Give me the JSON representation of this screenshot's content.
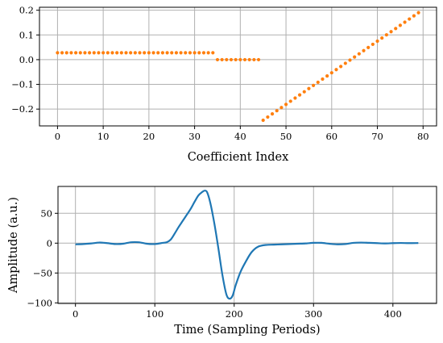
{
  "chart_data": [
    {
      "type": "scatter",
      "xlabel": "Coefficient Index",
      "ylabel": "",
      "xlim": [
        -3.95,
        82.95
      ],
      "ylim": [
        -0.268,
        0.212
      ],
      "xticks": [
        0,
        10,
        20,
        30,
        40,
        50,
        60,
        70,
        80
      ],
      "xtick_labels": [
        "0",
        "10",
        "20",
        "30",
        "40",
        "50",
        "60",
        "70",
        "80"
      ],
      "yticks": [
        -0.2,
        -0.1,
        0.0,
        0.1,
        0.2
      ],
      "ytick_labels": [
        "−0.2",
        "−0.1",
        "0.0",
        "0.1",
        "0.2"
      ],
      "grid": true,
      "marker_color": "#ff7f0e",
      "segments": [
        {
          "x_start": 0,
          "x_end": 34,
          "y_start": 0.028,
          "y_end": 0.028
        },
        {
          "x_start": 35,
          "x_end": 44,
          "y_start": 0.0,
          "y_end": 0.0
        },
        {
          "x_start": 45,
          "x_end": 79,
          "y_start": -0.245,
          "y_end": 0.19
        }
      ]
    },
    {
      "type": "line",
      "xlabel": "Time (Sampling Periods)",
      "ylabel": "Amplitude (a.u.)",
      "xlim": [
        -22,
        455
      ],
      "ylim": [
        -101,
        95
      ],
      "xticks": [
        0,
        100,
        200,
        300,
        400
      ],
      "xtick_labels": [
        "0",
        "100",
        "200",
        "300",
        "400"
      ],
      "yticks": [
        -100,
        -50,
        0,
        50
      ],
      "ytick_labels": [
        "−100",
        "−50",
        "0",
        "50"
      ],
      "grid": true,
      "line_color": "#1f77b4",
      "x": [
        0,
        10,
        20,
        30,
        40,
        50,
        60,
        70,
        80,
        90,
        100,
        110,
        115,
        120,
        125,
        130,
        135,
        140,
        145,
        150,
        155,
        160,
        163,
        166,
        170,
        175,
        180,
        185,
        190,
        194,
        198,
        202,
        208,
        215,
        222,
        230,
        240,
        250,
        260,
        270,
        280,
        290,
        300,
        310,
        320,
        330,
        340,
        350,
        360,
        370,
        380,
        390,
        400,
        410,
        420,
        432
      ],
      "y": [
        -2,
        -1.5,
        -0.5,
        1,
        0,
        -1.5,
        -1,
        1.5,
        1.5,
        -1,
        -1.5,
        0.5,
        1.5,
        6,
        16,
        27,
        37,
        47,
        57,
        69,
        80,
        86,
        88,
        85,
        67,
        33,
        -8,
        -52,
        -85,
        -93,
        -88,
        -70,
        -48,
        -30,
        -15,
        -6,
        -3,
        -2.5,
        -2,
        -1.5,
        -1,
        -0.5,
        0.5,
        0.5,
        -1,
        -2,
        -1.5,
        0.5,
        1,
        0.5,
        0,
        -0.5,
        0,
        0.3,
        0,
        0.2
      ]
    }
  ]
}
